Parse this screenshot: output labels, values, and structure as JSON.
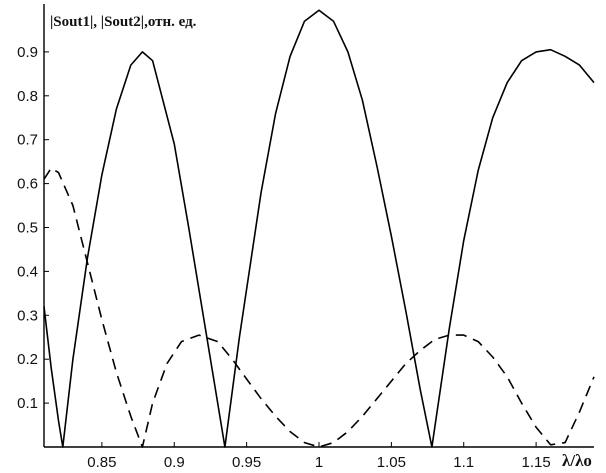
{
  "chart_data": {
    "type": "line",
    "ylabel": "|Sout1|, |Sout2|,отн. ед.",
    "xlabel": "λ/λo",
    "xlim": [
      0.81,
      1.19
    ],
    "ylim": [
      0,
      1.0
    ],
    "x_ticks": [
      "0.85",
      "0.9",
      "0.95",
      "1",
      "1.05",
      "1.1",
      "1.15"
    ],
    "x_tick_values": [
      0.85,
      0.9,
      0.95,
      1.0,
      1.05,
      1.1,
      1.15
    ],
    "y_ticks": [
      "0.1",
      "0.2",
      "0.3",
      "0.4",
      "0.5",
      "0.6",
      "0.7",
      "0.8",
      "0.9"
    ],
    "y_tick_values": [
      0.1,
      0.2,
      0.3,
      0.4,
      0.5,
      0.6,
      0.7,
      0.8,
      0.9
    ],
    "grid": false,
    "series": [
      {
        "style": "solid",
        "color": "#000000",
        "x": [
          0.81,
          0.815,
          0.82,
          0.823,
          0.83,
          0.84,
          0.85,
          0.86,
          0.87,
          0.878,
          0.885,
          0.9,
          0.91,
          0.92,
          0.93,
          0.935,
          0.945,
          0.96,
          0.97,
          0.98,
          0.99,
          1.0,
          1.01,
          1.02,
          1.03,
          1.04,
          1.05,
          1.06,
          1.07,
          1.078,
          1.09,
          1.1,
          1.11,
          1.12,
          1.13,
          1.14,
          1.15,
          1.16,
          1.17,
          1.18,
          1.19
        ],
        "y": [
          0.32,
          0.18,
          0.06,
          0.0,
          0.2,
          0.43,
          0.62,
          0.77,
          0.87,
          0.9,
          0.88,
          0.69,
          0.5,
          0.3,
          0.1,
          0.0,
          0.25,
          0.58,
          0.76,
          0.89,
          0.97,
          0.995,
          0.97,
          0.9,
          0.79,
          0.64,
          0.48,
          0.31,
          0.13,
          0.0,
          0.27,
          0.47,
          0.63,
          0.75,
          0.83,
          0.88,
          0.9,
          0.905,
          0.89,
          0.87,
          0.83
        ]
      },
      {
        "style": "dashed",
        "color": "#000000",
        "x": [
          0.81,
          0.815,
          0.82,
          0.83,
          0.84,
          0.85,
          0.86,
          0.87,
          0.878,
          0.885,
          0.895,
          0.905,
          0.917,
          0.93,
          0.94,
          0.95,
          0.96,
          0.97,
          0.98,
          0.99,
          1.0,
          1.01,
          1.02,
          1.03,
          1.04,
          1.05,
          1.06,
          1.07,
          1.08,
          1.09,
          1.1,
          1.11,
          1.12,
          1.13,
          1.14,
          1.15,
          1.16,
          1.17,
          1.18,
          1.19
        ],
        "y": [
          0.61,
          0.635,
          0.625,
          0.55,
          0.42,
          0.29,
          0.17,
          0.07,
          0.0,
          0.1,
          0.19,
          0.24,
          0.255,
          0.24,
          0.2,
          0.155,
          0.11,
          0.07,
          0.035,
          0.01,
          0.0,
          0.01,
          0.035,
          0.07,
          0.11,
          0.15,
          0.19,
          0.22,
          0.245,
          0.255,
          0.255,
          0.24,
          0.205,
          0.16,
          0.1,
          0.045,
          0.005,
          0.01,
          0.08,
          0.16
        ]
      }
    ]
  }
}
